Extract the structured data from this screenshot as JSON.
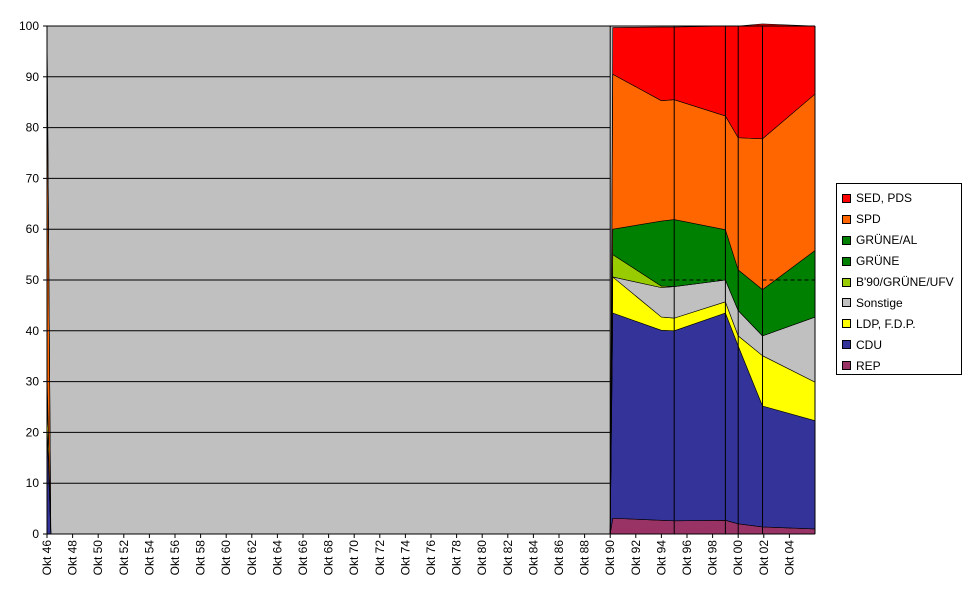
{
  "chart_data": {
    "type": "area",
    "stacked": true,
    "xlim": [
      1946,
      2006
    ],
    "ylim": [
      0,
      100
    ],
    "yticks": [
      0,
      10,
      20,
      30,
      40,
      50,
      60,
      70,
      80,
      90,
      100
    ],
    "xtick_labels": [
      "Okt 46",
      "Okt 48",
      "Okt 50",
      "Okt 52",
      "Okt 54",
      "Okt 56",
      "Okt 58",
      "Okt 60",
      "Okt 62",
      "Okt 64",
      "Okt 66",
      "Okt 68",
      "Okt 70",
      "Okt 72",
      "Okt 74",
      "Okt 76",
      "Okt 78",
      "Okt 80",
      "Okt 82",
      "Okt 84",
      "Okt 86",
      "Okt 88",
      "Okt 90",
      "Okt 92",
      "Okt 94",
      "Okt 96",
      "Okt 98",
      "Okt 00",
      "Okt 02",
      "Okt 04"
    ],
    "grid": true,
    "legend_position": "right",
    "x": [
      1946.0,
      1946.3,
      1990.0,
      1990.2,
      1994.0,
      1995.0,
      1999.0,
      2000.0,
      2001.9,
      2006.0
    ],
    "series": [
      {
        "name": "REP",
        "color": "#993366",
        "values": [
          0.0,
          0.0,
          0.0,
          3.1,
          2.7,
          2.6,
          2.7,
          2.0,
          1.4,
          1.0
        ]
      },
      {
        "name": "CDU",
        "color": "#333399",
        "values": [
          22.0,
          0.0,
          0.0,
          40.4,
          37.4,
          37.4,
          40.8,
          35.0,
          23.8,
          21.3
        ]
      },
      {
        "name": "LDP, F.D.P.",
        "color": "#ffff00",
        "values": [
          9.5,
          0.0,
          0.0,
          7.1,
          2.6,
          2.5,
          2.2,
          2.0,
          9.9,
          7.6
        ]
      },
      {
        "name": "Sonstige",
        "color": "#c0c0c0",
        "values": [
          0.0,
          0.0,
          0.0,
          0.0,
          5.8,
          6.2,
          4.3,
          5.0,
          3.9,
          12.8
        ]
      },
      {
        "name": "B'90/GRÜNE/UFV",
        "color": "#99cc00",
        "values": [
          0.0,
          0.0,
          0.0,
          4.4,
          0.3,
          0.0,
          0.0,
          0.0,
          0.0,
          0.0
        ]
      },
      {
        "name": "GRÜNE",
        "color": "#008000",
        "values": [
          0.0,
          0.0,
          0.0,
          0.0,
          0.0,
          0.0,
          0.0,
          0.0,
          0.0,
          0.0
        ]
      },
      {
        "name": "GRÜNE/AL",
        "color": "#008000",
        "values": [
          0.0,
          0.0,
          0.0,
          5.0,
          12.8,
          13.2,
          9.9,
          8.0,
          9.1,
          13.1
        ]
      },
      {
        "name": "SPD",
        "color": "#ff6600",
        "values": [
          68.3,
          0.0,
          0.0,
          30.5,
          23.7,
          23.6,
          22.4,
          26.0,
          29.7,
          30.8
        ]
      },
      {
        "name": "SED, PDS",
        "color": "#ff0000",
        "values": [
          0.2,
          0.0,
          0.0,
          9.2,
          14.5,
          14.3,
          17.7,
          22.0,
          22.6,
          13.4
        ]
      }
    ],
    "legend_order": [
      "SED, PDS",
      "SPD",
      "GRÜNE/AL",
      "GRÜNE",
      "B'90/GRÜNE/UFV",
      "Sonstige",
      "LDP, F.D.P.",
      "CDU",
      "REP"
    ],
    "dashed_lines": [
      {
        "from": 1994.0,
        "to": 1999.0,
        "y": 50
      },
      {
        "from": 2001.9,
        "to": 2006.0,
        "y": 50
      }
    ],
    "data_vertical_lines": [
      1990.0,
      1995.0,
      1999.0,
      2000.0,
      2001.9,
      2006.0
    ],
    "colors": {
      "plot_background": "#c0c0c0",
      "grid": "#000000"
    }
  }
}
